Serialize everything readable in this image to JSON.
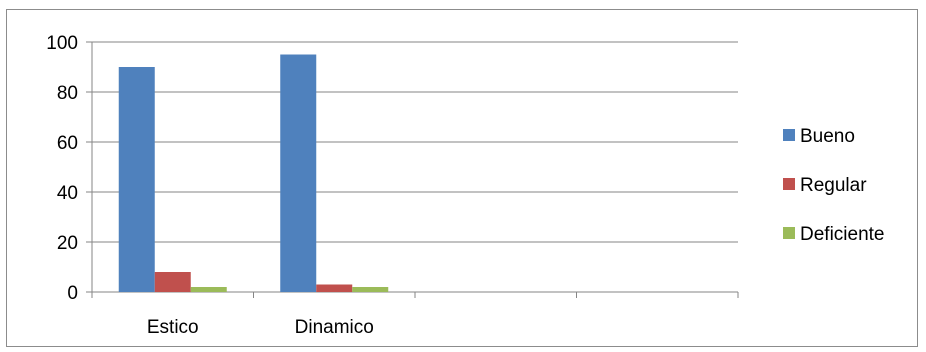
{
  "chart_data": {
    "type": "bar",
    "categories": [
      "Estico",
      "Dinamico",
      "",
      ""
    ],
    "series": [
      {
        "name": "Bueno",
        "values": [
          90,
          95,
          null,
          null
        ],
        "color": "#4f81bd"
      },
      {
        "name": "Regular",
        "values": [
          8,
          3,
          null,
          null
        ],
        "color": "#c0504d"
      },
      {
        "name": "Deficiente",
        "values": [
          2,
          2,
          null,
          null
        ],
        "color": "#9bbb59"
      }
    ],
    "ylim": [
      0,
      100
    ],
    "yticks": [
      0,
      20,
      40,
      60,
      80,
      100
    ],
    "grid": true,
    "legend_position": "right"
  }
}
